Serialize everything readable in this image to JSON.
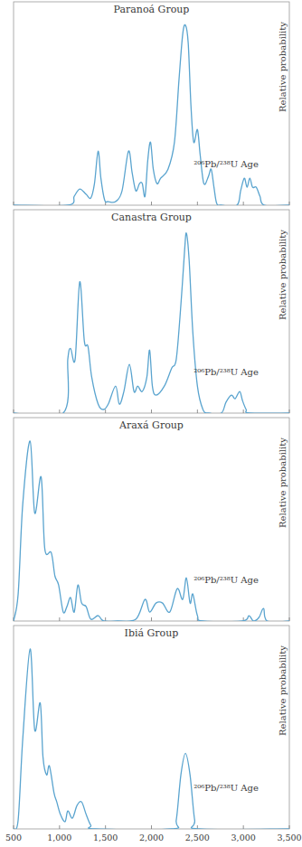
{
  "chart_data": [
    {
      "type": "line",
      "title": "Paranoá Group",
      "y_label": "Relative probability",
      "annotation": "²⁰⁶Pb/²³⁸U Age",
      "x": [
        500,
        1090,
        1160,
        1220,
        1290,
        1340,
        1380,
        1420,
        1450,
        1490,
        1530,
        1610,
        1680,
        1750,
        1790,
        1830,
        1870,
        1900,
        1930,
        1960,
        1990,
        2020,
        2060,
        2100,
        2180,
        2250,
        2300,
        2340,
        2370,
        2400,
        2430,
        2460,
        2500,
        2530,
        2570,
        2620,
        2650,
        2680,
        2710,
        2760,
        2930,
        2970,
        3010,
        3040,
        3070,
        3100,
        3140,
        3180,
        3230,
        3500
      ],
      "values": [
        0,
        0,
        0.05,
        0.09,
        0.06,
        0.04,
        0.12,
        0.3,
        0.15,
        0.03,
        0.02,
        0.02,
        0.08,
        0.3,
        0.18,
        0.08,
        0.12,
        0.12,
        0.05,
        0.25,
        0.35,
        0.2,
        0.12,
        0.15,
        0.2,
        0.35,
        0.7,
        0.95,
        1.0,
        0.9,
        0.55,
        0.35,
        0.42,
        0.28,
        0.12,
        0.16,
        0.2,
        0.1,
        0.01,
        0,
        0,
        0.08,
        0.15,
        0.1,
        0.15,
        0.1,
        0.1,
        0.05,
        0,
        0
      ],
      "color": "#5aa4cf",
      "xlim": [
        500,
        3500
      ],
      "ylim": [
        0,
        1.05
      ],
      "xticks": [
        500,
        {
          "value": 1000,
          "label": "1,000"
        },
        {
          "value": 1500,
          "label": "1,500"
        },
        {
          "value": 2000,
          "label": "2,000"
        },
        {
          "value": 2500,
          "label": "2,500"
        },
        {
          "value": 3000,
          "label": "3,000"
        },
        {
          "value": 3500,
          "label": "3,500"
        }
      ],
      "tick_labels": false
    },
    {
      "type": "line",
      "title": "Canastra Group",
      "y_label": "Relative probability",
      "annotation": "²⁰⁶Pb/²³⁸U Age",
      "x": [
        500,
        1040,
        1090,
        1120,
        1170,
        1220,
        1270,
        1310,
        1350,
        1420,
        1480,
        1530,
        1610,
        1650,
        1700,
        1760,
        1810,
        1850,
        1900,
        1950,
        1980,
        2010,
        2050,
        2140,
        2220,
        2270,
        2320,
        2360,
        2380,
        2410,
        2450,
        2500,
        2560,
        2620,
        2760,
        2810,
        2870,
        2910,
        2960,
        2990,
        3030,
        3070,
        3500
      ],
      "values": [
        0,
        0,
        0.3,
        0.36,
        0.3,
        0.73,
        0.4,
        0.37,
        0.2,
        0.05,
        0.02,
        0.05,
        0.15,
        0.05,
        0.12,
        0.27,
        0.12,
        0.15,
        0.12,
        0.2,
        0.35,
        0.15,
        0.1,
        0.15,
        0.25,
        0.3,
        0.6,
        0.9,
        1.0,
        0.85,
        0.45,
        0.15,
        0.02,
        0,
        0,
        0.06,
        0.1,
        0.08,
        0.12,
        0.07,
        0.02,
        0,
        0
      ],
      "color": "#5aa4cf",
      "xlim": [
        500,
        3500
      ],
      "ylim": [
        0,
        1.05
      ],
      "xticks": [
        500,
        {
          "value": 1000,
          "label": "1,000"
        },
        {
          "value": 1500,
          "label": "1,500"
        },
        {
          "value": 2000,
          "label": "2,000"
        },
        {
          "value": 2500,
          "label": "2,500"
        },
        {
          "value": 3000,
          "label": "3,000"
        },
        {
          "value": 3500,
          "label": "3,500"
        }
      ],
      "tick_labels": false
    },
    {
      "type": "line",
      "title": "Araxá Group",
      "y_label": "Relative probability",
      "annotation": "²⁰⁶Pb/²³⁸U Age",
      "x": [
        500,
        550,
        600,
        680,
        730,
        800,
        840,
        910,
        950,
        990,
        1040,
        1080,
        1120,
        1160,
        1200,
        1240,
        1290,
        1340,
        1420,
        1480,
        1630,
        1830,
        1930,
        1980,
        2050,
        2120,
        2200,
        2280,
        2340,
        2380,
        2420,
        2450,
        2500,
        2560,
        2990,
        3060,
        3110,
        3170,
        3220,
        3260,
        3500
      ],
      "values": [
        0,
        0.15,
        0.65,
        1.0,
        0.6,
        0.8,
        0.4,
        0.38,
        0.25,
        0.2,
        0.05,
        0.08,
        0.13,
        0.05,
        0.2,
        0.1,
        0.08,
        0.01,
        0.03,
        0,
        0,
        0.01,
        0.12,
        0.05,
        0.1,
        0.1,
        0.05,
        0.18,
        0.12,
        0.24,
        0.1,
        0.15,
        0.03,
        0,
        0,
        0.03,
        0,
        0.02,
        0.07,
        0,
        0
      ],
      "color": "#5aa4cf",
      "xlim": [
        500,
        3500
      ],
      "ylim": [
        0,
        1.05
      ],
      "xticks": [
        500,
        {
          "value": 1000,
          "label": "1,000"
        },
        {
          "value": 1500,
          "label": "1,500"
        },
        {
          "value": 2000,
          "label": "2,000"
        },
        {
          "value": 2500,
          "label": "2,500"
        },
        {
          "value": 3000,
          "label": "3,000"
        },
        {
          "value": 3500,
          "label": "3,500"
        }
      ],
      "tick_labels": false
    },
    {
      "type": "line",
      "title": "Ibiá Group",
      "y_label": "Relative probability",
      "annotation": "²⁰⁶Pb/²³⁸U Age",
      "x": [
        500,
        550,
        600,
        680,
        730,
        790,
        820,
        860,
        890,
        940,
        970,
        1010,
        1060,
        1090,
        1140,
        1190,
        1240,
        1290,
        1340,
        1390,
        2220,
        2270,
        2320,
        2370,
        2420,
        2470,
        2520,
        3500
      ],
      "values": [
        0,
        0.05,
        0.5,
        1.0,
        0.55,
        0.7,
        0.4,
        0.3,
        0.35,
        0.2,
        0.15,
        0.08,
        0.04,
        0.1,
        0.06,
        0.13,
        0.15,
        0.08,
        0.02,
        0,
        0,
        0.05,
        0.3,
        0.42,
        0.3,
        0.05,
        0,
        0
      ],
      "color": "#5aa4cf",
      "xlim": [
        500,
        3500
      ],
      "ylim": [
        0,
        1.05
      ],
      "xticks": [
        500,
        {
          "value": 1000,
          "label": "1,000"
        },
        {
          "value": 1500,
          "label": "1,500"
        },
        {
          "value": 2000,
          "label": "2,000"
        },
        {
          "value": 2500,
          "label": "2,500"
        },
        {
          "value": 3000,
          "label": "3,000"
        },
        {
          "value": 3500,
          "label": "3,500"
        }
      ],
      "tick_labels": "x"
    }
  ]
}
